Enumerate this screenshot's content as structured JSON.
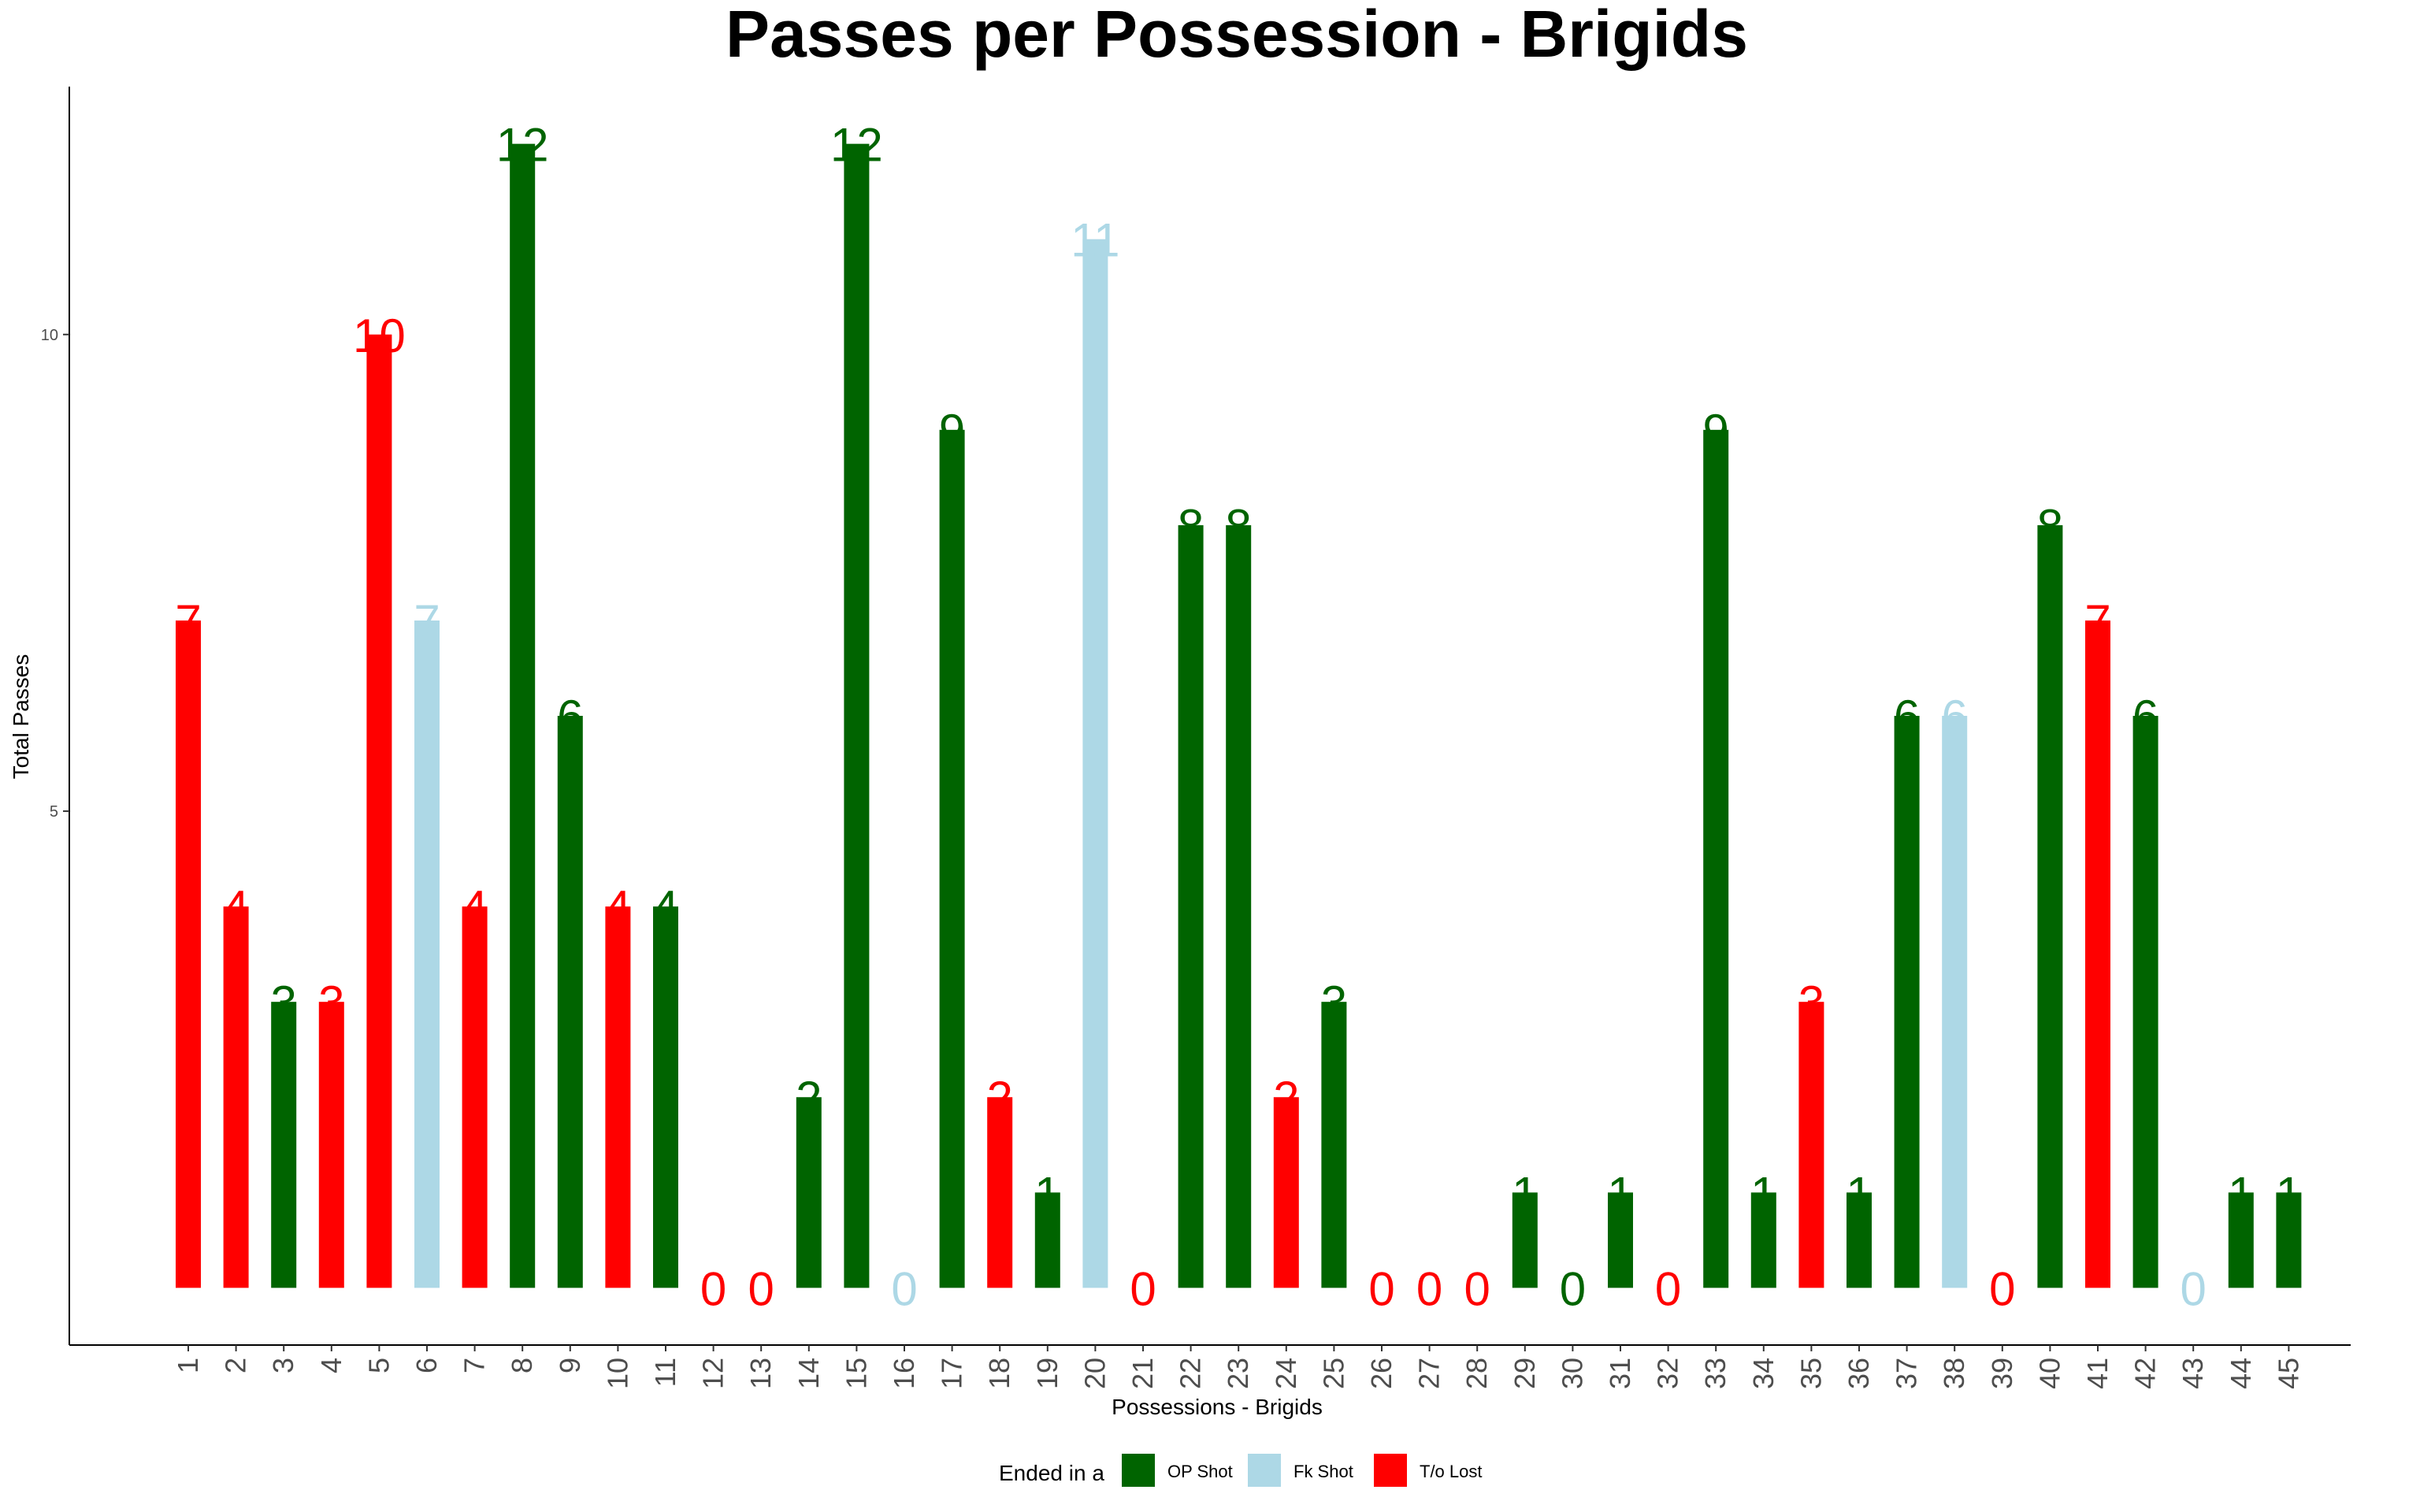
{
  "chart_data": {
    "type": "bar",
    "title": "Passes per Possession - Brigids",
    "xlabel": "Possessions - Brigids",
    "ylabel": "Total Passes",
    "ylim": [
      -0.6,
      12.6
    ],
    "yticks": [
      5,
      10
    ],
    "categories": [
      "1",
      "2",
      "3",
      "4",
      "5",
      "6",
      "7",
      "8",
      "9",
      "10",
      "11",
      "12",
      "13",
      "14",
      "15",
      "16",
      "17",
      "18",
      "19",
      "20",
      "21",
      "22",
      "23",
      "24",
      "25",
      "26",
      "27",
      "28",
      "29",
      "30",
      "31",
      "32",
      "33",
      "34",
      "35",
      "36",
      "37",
      "38",
      "39",
      "40",
      "41",
      "42",
      "43",
      "44",
      "45"
    ],
    "values": [
      7,
      4,
      3,
      3,
      10,
      7,
      4,
      12,
      6,
      4,
      4,
      0,
      0,
      2,
      12,
      0,
      9,
      2,
      1,
      11,
      0,
      8,
      8,
      2,
      3,
      0,
      0,
      0,
      1,
      0,
      1,
      0,
      9,
      1,
      3,
      1,
      6,
      6,
      0,
      8,
      7,
      6,
      0,
      1,
      1
    ],
    "outcome": [
      "T/o Lost",
      "T/o Lost",
      "OP Shot",
      "T/o Lost",
      "T/o Lost",
      "Fk Shot",
      "T/o Lost",
      "OP Shot",
      "OP Shot",
      "T/o Lost",
      "OP Shot",
      "T/o Lost",
      "T/o Lost",
      "OP Shot",
      "OP Shot",
      "Fk Shot",
      "OP Shot",
      "T/o Lost",
      "OP Shot",
      "Fk Shot",
      "T/o Lost",
      "OP Shot",
      "OP Shot",
      "T/o Lost",
      "OP Shot",
      "T/o Lost",
      "T/o Lost",
      "T/o Lost",
      "OP Shot",
      "OP Shot",
      "OP Shot",
      "T/o Lost",
      "OP Shot",
      "OP Shot",
      "T/o Lost",
      "OP Shot",
      "OP Shot",
      "Fk Shot",
      "T/o Lost",
      "OP Shot",
      "T/o Lost",
      "OP Shot",
      "Fk Shot",
      "OP Shot",
      "OP Shot"
    ],
    "grid": false,
    "legend": {
      "title": "Ended in a",
      "placement": "bottom",
      "entries": [
        {
          "name": "OP Shot",
          "color": "#006400"
        },
        {
          "name": "Fk Shot",
          "color": "#ADD8E6"
        },
        {
          "name": "T/o Lost",
          "color": "#FF0000"
        }
      ]
    }
  }
}
